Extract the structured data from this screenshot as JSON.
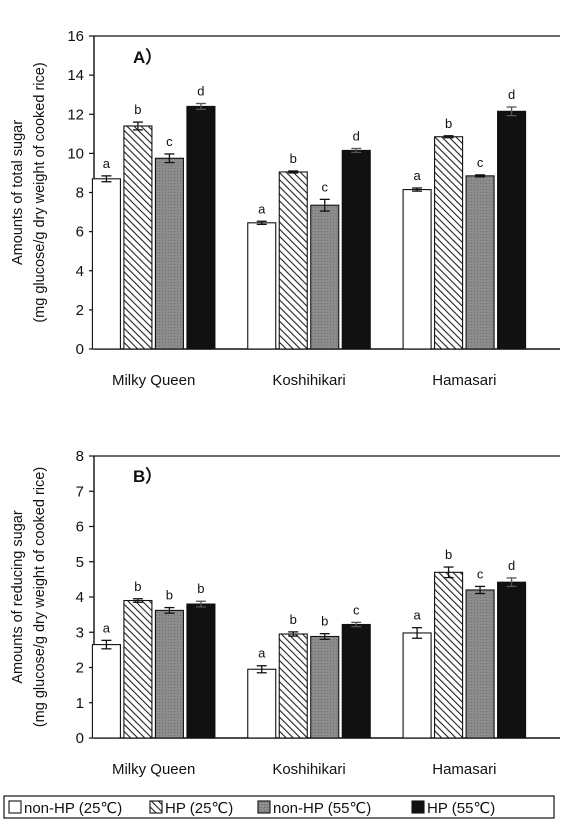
{
  "chart_data": [
    {
      "type": "bar",
      "panel_label": "A）",
      "ylabel_line1": "Amounts of total sugar",
      "ylabel_line2": "(mg glucose/g dry weight of cooked rice)",
      "xlabel": "",
      "ylim": [
        0,
        16
      ],
      "yticks": [
        0,
        2,
        4,
        6,
        8,
        10,
        12,
        14,
        16
      ],
      "categories": [
        "Milky Queen",
        "Koshihikari",
        "Hamasari"
      ],
      "series": [
        {
          "name": "non-HP (25℃)",
          "values": [
            8.7,
            6.45,
            8.15
          ],
          "errors": [
            0.15,
            0.08,
            0.08
          ],
          "labels": [
            "a",
            "a",
            "a"
          ],
          "fill": "white"
        },
        {
          "name": "HP (25℃)",
          "values": [
            11.4,
            9.05,
            10.85
          ],
          "errors": [
            0.2,
            0.05,
            0.05
          ],
          "labels": [
            "b",
            "b",
            "b"
          ],
          "fill": "hatch"
        },
        {
          "name": "non-HP (55℃)",
          "values": [
            9.75,
            7.35,
            8.85
          ],
          "errors": [
            0.22,
            0.3,
            0.05
          ],
          "labels": [
            "c",
            "c",
            "c"
          ],
          "fill": "grey"
        },
        {
          "name": "HP (55℃)",
          "values": [
            12.4,
            10.15,
            12.15
          ],
          "errors": [
            0.15,
            0.1,
            0.22
          ],
          "labels": [
            "d",
            "d",
            "d"
          ],
          "fill": "black"
        }
      ]
    },
    {
      "type": "bar",
      "panel_label": "B）",
      "ylabel_line1": "Amounts of reducing sugar",
      "ylabel_line2": "(mg glucose/g dry weight of cooked rice)",
      "xlabel": "",
      "ylim": [
        0,
        8
      ],
      "yticks": [
        0,
        1,
        2,
        3,
        4,
        5,
        6,
        7,
        8
      ],
      "categories": [
        "Milky Queen",
        "Koshihikari",
        "Hamasari"
      ],
      "series": [
        {
          "name": "non-HP (25℃)",
          "values": [
            2.65,
            1.95,
            2.98
          ],
          "errors": [
            0.12,
            0.1,
            0.15
          ],
          "labels": [
            "a",
            "a",
            "a"
          ],
          "fill": "white"
        },
        {
          "name": "HP (25℃)",
          "values": [
            3.9,
            2.95,
            4.7
          ],
          "errors": [
            0.05,
            0.06,
            0.15
          ],
          "labels": [
            "b",
            "b",
            "b"
          ],
          "fill": "hatch"
        },
        {
          "name": "non-HP (55℃)",
          "values": [
            3.62,
            2.88,
            4.2
          ],
          "errors": [
            0.08,
            0.08,
            0.1
          ],
          "labels": [
            "b",
            "b",
            "c"
          ],
          "fill": "grey"
        },
        {
          "name": "HP (55℃)",
          "values": [
            3.8,
            3.22,
            4.42
          ],
          "errors": [
            0.08,
            0.06,
            0.12
          ],
          "labels": [
            "b",
            "c",
            "d"
          ],
          "fill": "black"
        }
      ]
    }
  ],
  "legend": [
    {
      "label": "non-HP (25℃)",
      "fill": "white"
    },
    {
      "label": "HP (25℃)",
      "fill": "hatch"
    },
    {
      "label": "non-HP (55℃)",
      "fill": "grey"
    },
    {
      "label": "HP (55℃)",
      "fill": "black"
    }
  ],
  "colors": {
    "grey": "#8c8c8c",
    "black": "#111111",
    "white": "#ffffff",
    "hatch_line": "#222222"
  }
}
